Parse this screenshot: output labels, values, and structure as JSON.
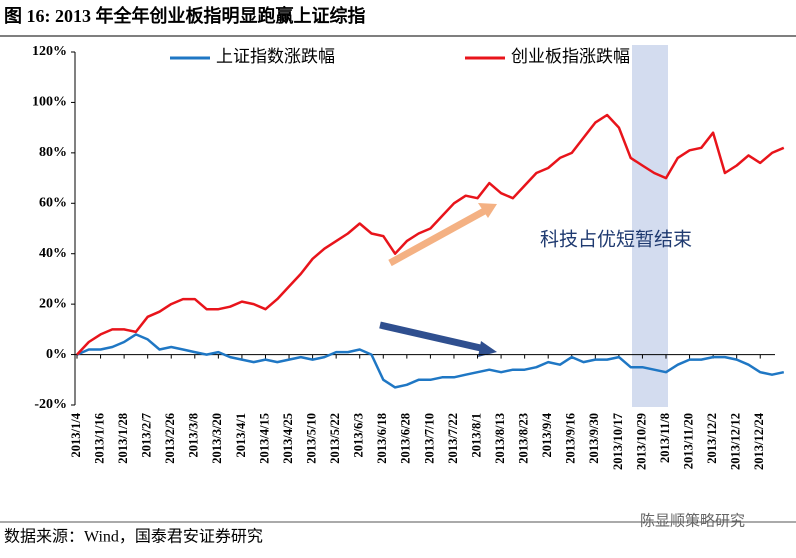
{
  "chart_data": {
    "type": "line",
    "title": "图 16:  2013 年全年创业板指明显跑赢上证综指",
    "source": "数据来源：Wind，国泰君安证券研究",
    "watermark": "陈显顺策略研究",
    "annotation": "科技占优短暂结束",
    "legend": "top",
    "categories": [
      "2013/1/4",
      null,
      "2013/1/16",
      null,
      "2013/1/28",
      null,
      "2013/2/7",
      null,
      "2013/2/26",
      null,
      "2013/3/8",
      null,
      "2013/3/20",
      null,
      "2013/4/1",
      null,
      "2013/4/15",
      null,
      "2013/4/25",
      null,
      "2013/5/10",
      null,
      "2013/5/22",
      null,
      "2013/6/3",
      null,
      "2013/6/18",
      null,
      "2013/6/28",
      null,
      "2013/7/10",
      null,
      "2013/7/22",
      null,
      "2013/8/1",
      null,
      "2013/8/13",
      null,
      "2013/8/23",
      null,
      "2013/9/4",
      null,
      "2013/9/16",
      null,
      "2013/9/30",
      null,
      "2013/10/17",
      null,
      "2013/10/29",
      null,
      "2013/11/8",
      null,
      "2013/11/20",
      null,
      "2013/12/2",
      null,
      "2013/12/12",
      null,
      "2013/12/24",
      null,
      null
    ],
    "series": [
      {
        "name": "上证指数涨跌幅",
        "color": "#1f77c4",
        "values": [
          0,
          2,
          2,
          3,
          5,
          8,
          6,
          2,
          3,
          2,
          1,
          0,
          1,
          -1,
          -2,
          -3,
          -2,
          -3,
          -2,
          -1,
          -2,
          -1,
          1,
          1,
          2,
          0,
          -10,
          -13,
          -12,
          -10,
          -10,
          -9,
          -9,
          -8,
          -7,
          -6,
          -7,
          -6,
          -6,
          -5,
          -3,
          -4,
          -1,
          -3,
          -2,
          -2,
          -1,
          -5,
          -5,
          -6,
          -7,
          -4,
          -2,
          -2,
          -1,
          -1,
          -2,
          -4,
          -7,
          -8,
          -7
        ]
      },
      {
        "name": "创业板指涨跌幅",
        "color": "#e8141b",
        "values": [
          0,
          5,
          8,
          10,
          10,
          9,
          15,
          17,
          20,
          22,
          22,
          18,
          18,
          19,
          21,
          20,
          18,
          22,
          27,
          32,
          38,
          42,
          45,
          48,
          52,
          48,
          47,
          40,
          45,
          48,
          50,
          55,
          60,
          63,
          62,
          68,
          64,
          62,
          67,
          72,
          74,
          78,
          80,
          86,
          92,
          95,
          90,
          78,
          75,
          72,
          70,
          78,
          81,
          82,
          88,
          72,
          75,
          79,
          76,
          80,
          82
        ]
      }
    ],
    "ylim": [
      -20,
      120
    ],
    "yticks": [
      {
        "value": -20,
        "label": "-20%"
      },
      {
        "value": 0,
        "label": "0%"
      },
      {
        "value": 20,
        "label": "20%"
      },
      {
        "value": 40,
        "label": "40%"
      },
      {
        "value": 60,
        "label": "60%"
      },
      {
        "value": 80,
        "label": "80%"
      },
      {
        "value": 100,
        "label": "100%"
      },
      {
        "value": 120,
        "label": "120%"
      }
    ]
  }
}
